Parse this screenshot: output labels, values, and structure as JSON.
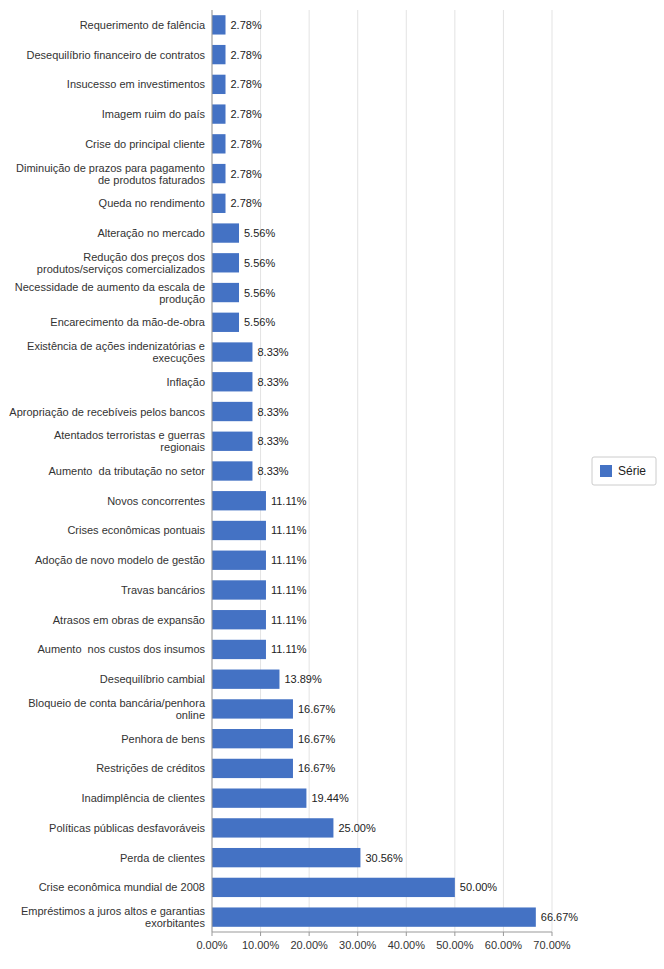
{
  "chart_data": {
    "type": "bar",
    "orientation": "horizontal",
    "categories": [
      "Requerimento de falência",
      "Desequilíbrio financeiro de contratos",
      "Insucesso em investimentos",
      "Imagem ruim do país",
      "Crise do principal cliente",
      "Diminuição de prazos para pagamento de produtos faturados",
      "Queda no rendimento",
      "Alteração no mercado",
      "Redução dos preços dos produtos/serviços comercializados",
      "Necessidade de aumento da escala de produção",
      "Encarecimento da mão-de-obra",
      "Existência de ações indenizatórias e execuções",
      "Inflação",
      "Apropriação de recebíveis pelos bancos",
      "Atentados terroristas e guerras regionais",
      "Aumento  da tributação no setor",
      "Novos concorrentes",
      "Crises econômicas pontuais",
      "Adoção de novo modelo de gestão",
      "Travas bancários",
      "Atrasos em obras de expansão",
      "Aumento  nos custos dos insumos",
      "Desequilíbrio cambial",
      "Bloqueio de conta bancária/penhora online",
      "Penhora de bens",
      "Restrições de créditos",
      "Inadimplência de clientes",
      "Políticas públicas desfavoráveis",
      "Perda de clientes",
      "Crise econômica mundial de 2008",
      "Empréstimos a juros altos e garantias exorbitantes"
    ],
    "series": [
      {
        "name": "Série",
        "color": "#4472C4",
        "values": [
          2.78,
          2.78,
          2.78,
          2.78,
          2.78,
          2.78,
          2.78,
          5.56,
          5.56,
          5.56,
          5.56,
          8.33,
          8.33,
          8.33,
          8.33,
          8.33,
          11.11,
          11.11,
          11.11,
          11.11,
          11.11,
          11.11,
          13.89,
          16.67,
          16.67,
          16.67,
          19.44,
          25.0,
          30.56,
          50.0,
          66.67
        ],
        "value_labels": [
          "2.78%",
          "2.78%",
          "2.78%",
          "2.78%",
          "2.78%",
          "2.78%",
          "2.78%",
          "5.56%",
          "5.56%",
          "5.56%",
          "5.56%",
          "8.33%",
          "8.33%",
          "8.33%",
          "8.33%",
          "8.33%",
          "11.11%",
          "11.11%",
          "11.11%",
          "11.11%",
          "11.11%",
          "11.11%",
          "13.89%",
          "16.67%",
          "16.67%",
          "16.67%",
          "19.44%",
          "25.00%",
          "30.56%",
          "50.00%",
          "66.67%"
        ]
      }
    ],
    "xlim": [
      0,
      70
    ],
    "xticks": [
      {
        "value": 0,
        "label": "0.00%"
      },
      {
        "value": 10,
        "label": "10.00%"
      },
      {
        "value": 20,
        "label": "20.00%"
      },
      {
        "value": 30,
        "label": "30.00%"
      },
      {
        "value": 40,
        "label": "40.00%"
      },
      {
        "value": 50,
        "label": "50.00%"
      },
      {
        "value": 60,
        "label": "60.00%"
      },
      {
        "value": 70,
        "label": "70.00%"
      }
    ],
    "grid": true,
    "data_labels": true,
    "legend": "right"
  }
}
